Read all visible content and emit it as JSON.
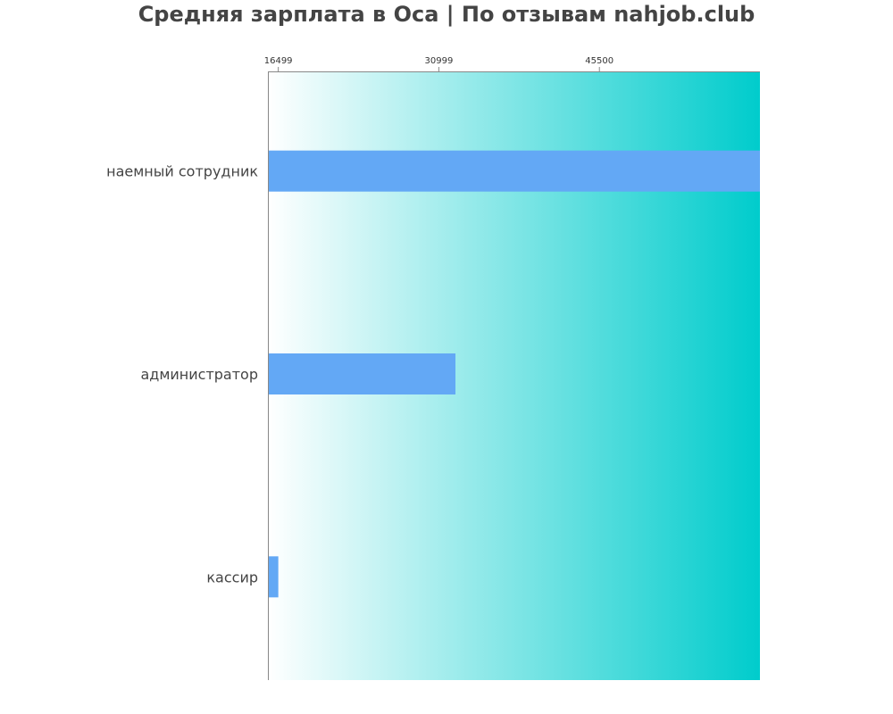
{
  "chart_data": {
    "type": "bar",
    "orientation": "horizontal",
    "title": "Средняя зарплата в Оса | По отзывам nahjob.club",
    "categories": [
      "наемный сотрудник",
      "администратор",
      "кассир"
    ],
    "values": [
      60000,
      32500,
      16499
    ],
    "xticks": [
      16499,
      30999,
      45500
    ],
    "xlim": [
      15560,
      60000
    ],
    "xlabel": "",
    "ylabel": "",
    "axis_position": "top",
    "grid": false,
    "colors": {
      "bar": "#63a8f5",
      "background_start": "#ffffff",
      "background_end": "#00cccc",
      "text": "#444444"
    }
  }
}
